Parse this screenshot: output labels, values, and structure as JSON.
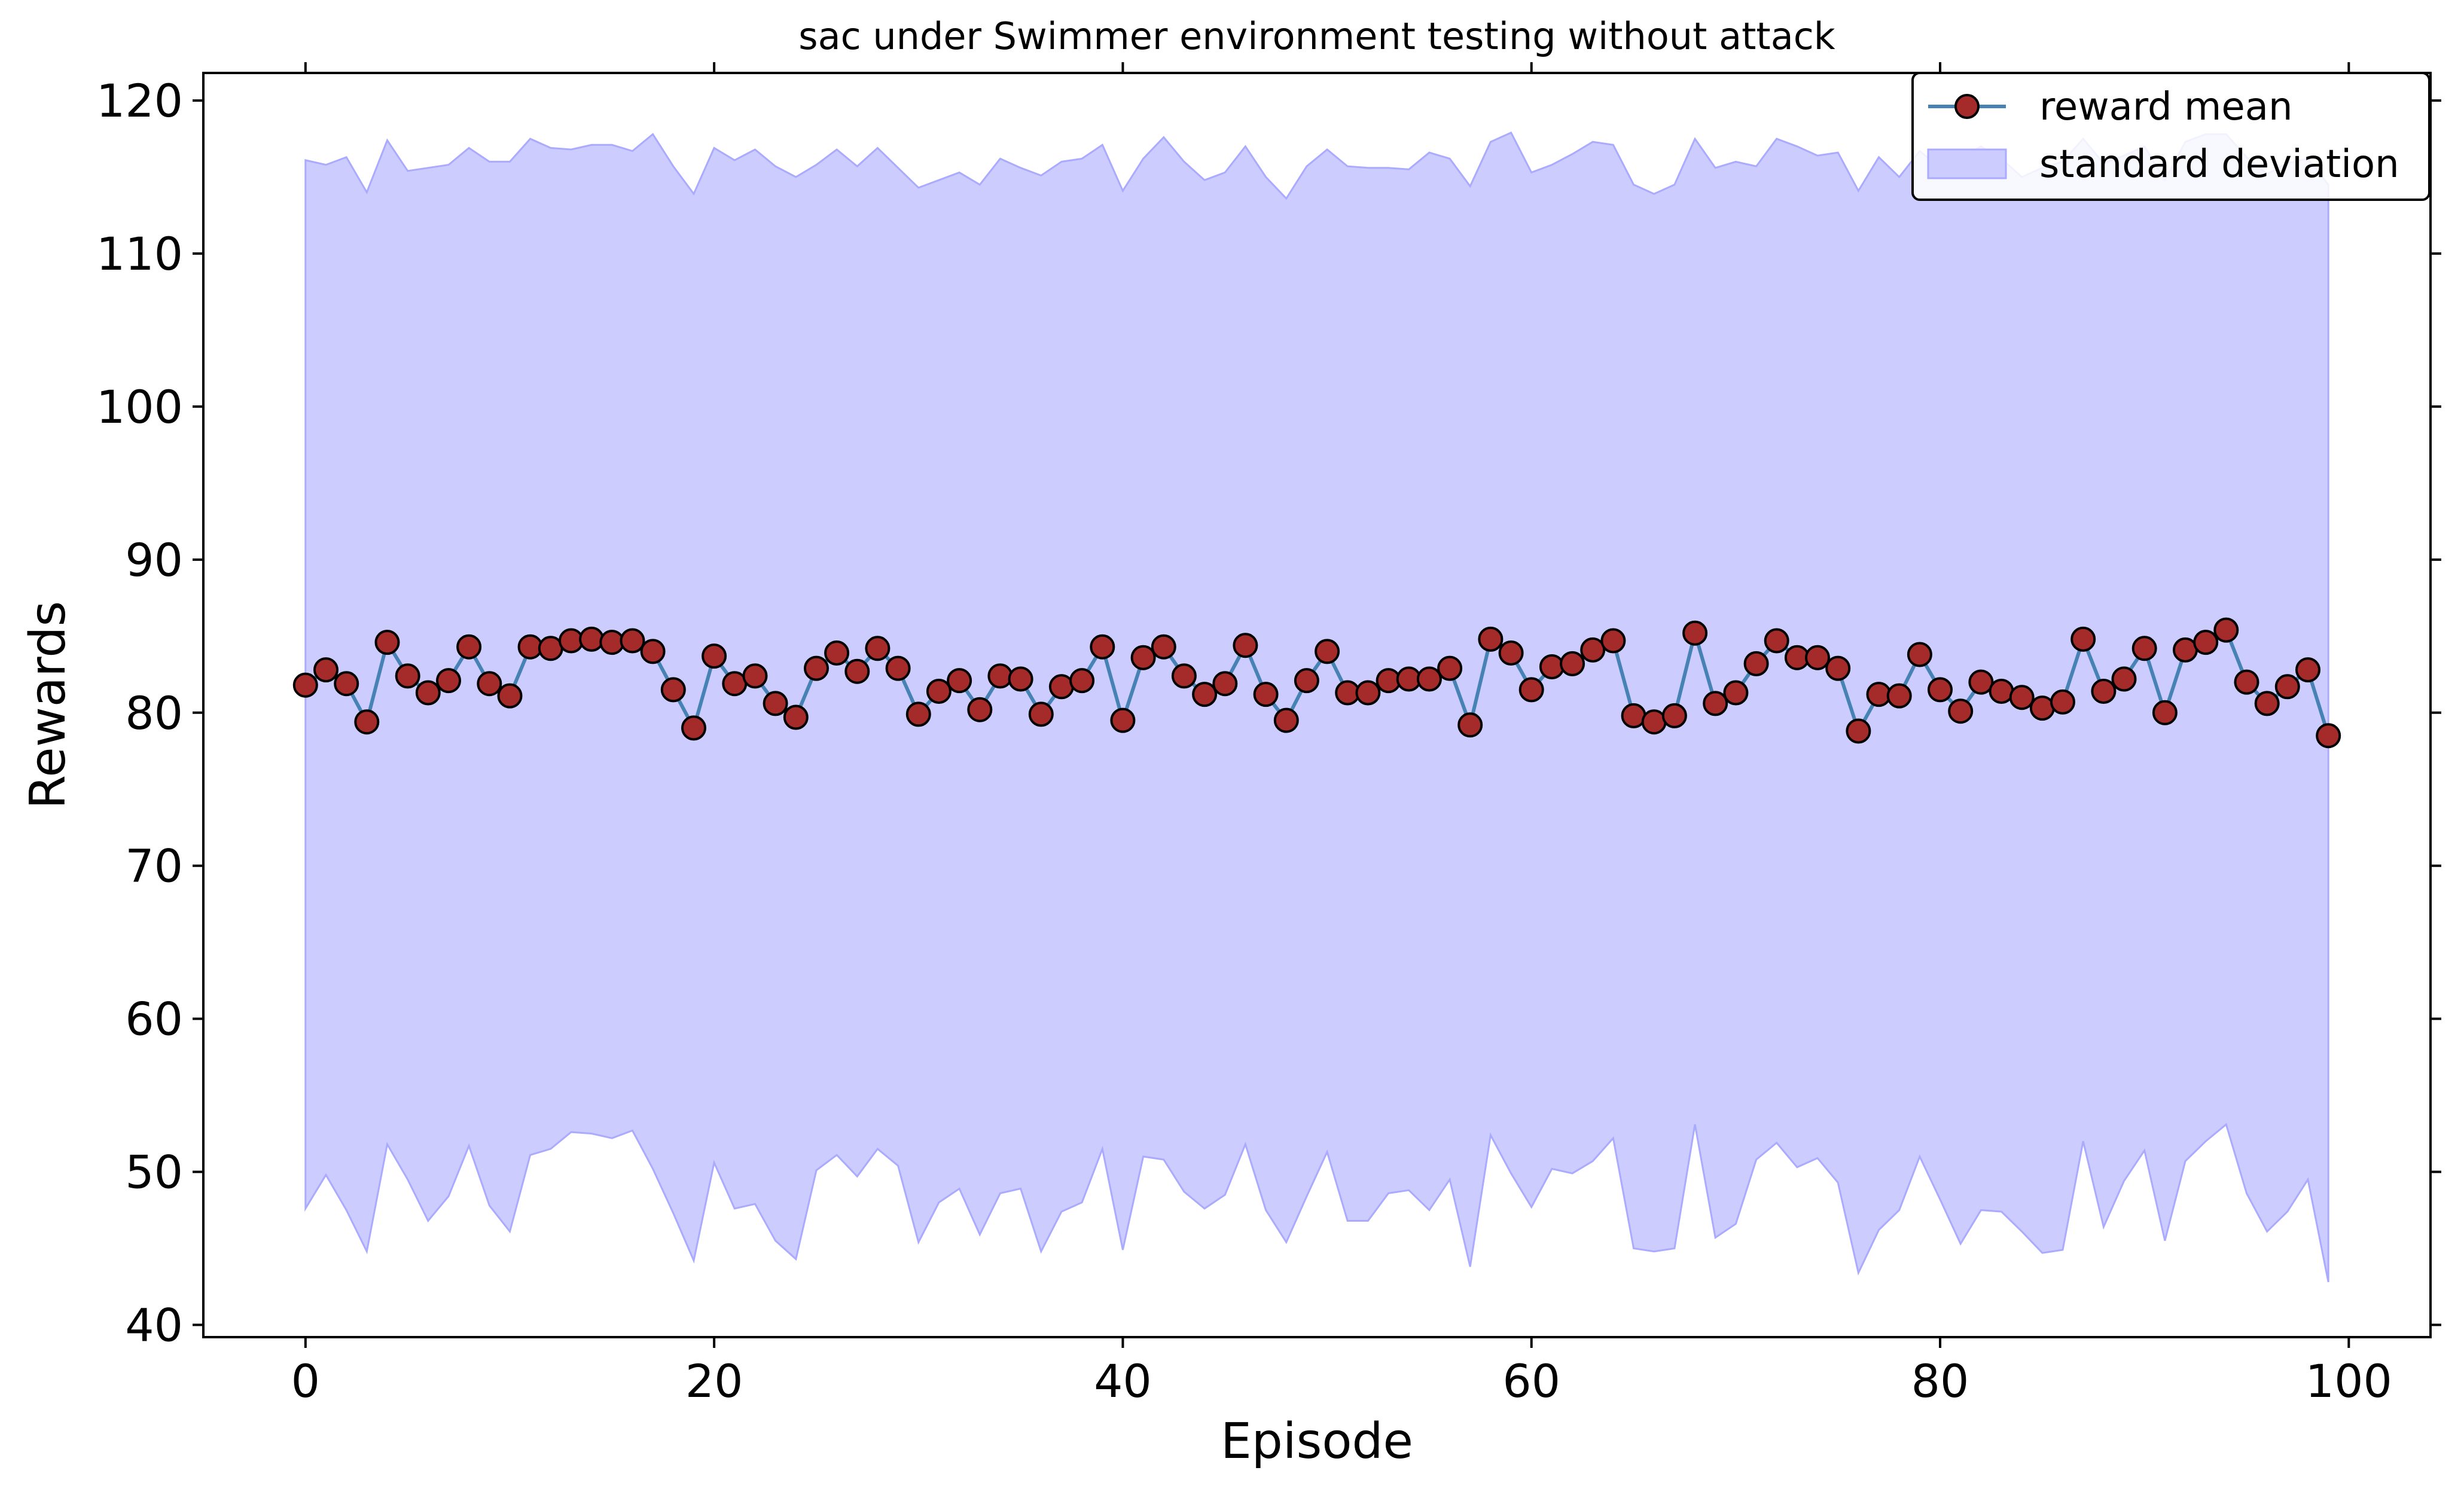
{
  "chart_data": {
    "type": "line",
    "title": "sac under Swimmer environment testing without attack",
    "xlabel": "Episode",
    "ylabel": "Rewards",
    "xlim": [
      -5,
      104
    ],
    "ylim": [
      39.2,
      121.8
    ],
    "xticks": [
      0,
      20,
      40,
      60,
      80,
      100
    ],
    "yticks": [
      40,
      50,
      60,
      70,
      80,
      90,
      100,
      110,
      120
    ],
    "grid": false,
    "legend_position": "top-right",
    "colors": {
      "line": "#4682b4",
      "marker_fill": "#a52a2a",
      "marker_edge": "#000000",
      "band_fill": "#ccccff",
      "band_edge": "#aaaaff"
    },
    "x": [
      0,
      1,
      2,
      3,
      4,
      5,
      6,
      7,
      8,
      9,
      10,
      11,
      12,
      13,
      14,
      15,
      16,
      17,
      18,
      19,
      20,
      21,
      22,
      23,
      24,
      25,
      26,
      27,
      28,
      29,
      30,
      31,
      32,
      33,
      34,
      35,
      36,
      37,
      38,
      39,
      40,
      41,
      42,
      43,
      44,
      45,
      46,
      47,
      48,
      49,
      50,
      51,
      52,
      53,
      54,
      55,
      56,
      57,
      58,
      59,
      60,
      61,
      62,
      63,
      64,
      65,
      66,
      67,
      68,
      69,
      70,
      71,
      72,
      73,
      74,
      75,
      76,
      77,
      78,
      79,
      80,
      81,
      82,
      83,
      84,
      85,
      86,
      87,
      88,
      89,
      90,
      91,
      92,
      93,
      94,
      95,
      96,
      97,
      98,
      99
    ],
    "series": [
      {
        "name": "reward mean",
        "marker": "o",
        "values": [
          81.8,
          82.8,
          81.9,
          79.4,
          84.6,
          82.4,
          81.3,
          82.1,
          84.3,
          81.9,
          81.1,
          84.3,
          84.2,
          84.7,
          84.8,
          84.6,
          84.7,
          84.0,
          81.5,
          79.0,
          83.7,
          81.9,
          82.4,
          80.6,
          79.7,
          82.9,
          83.9,
          82.7,
          84.2,
          82.9,
          79.9,
          81.4,
          82.1,
          80.2,
          82.4,
          82.2,
          79.9,
          81.7,
          82.1,
          84.3,
          79.5,
          83.6,
          84.3,
          82.4,
          81.2,
          81.9,
          84.4,
          81.2,
          79.5,
          82.1,
          84.0,
          81.3,
          81.3,
          82.1,
          82.2,
          82.2,
          82.9,
          79.2,
          84.8,
          83.9,
          81.5,
          83.0,
          83.2,
          84.1,
          84.7,
          79.8,
          79.4,
          79.8,
          85.2,
          80.6,
          81.3,
          83.2,
          84.7,
          83.6,
          83.6,
          82.9,
          78.8,
          81.2,
          81.1,
          83.8,
          81.5,
          80.1,
          82.0,
          81.4,
          81.0,
          80.3,
          80.7,
          84.8,
          81.4,
          82.2,
          84.2,
          80.0,
          84.1,
          84.6,
          85.4,
          82.0,
          80.6,
          81.7,
          82.8,
          78.5
        ]
      },
      {
        "name": "standard deviation",
        "type": "band",
        "upper": [
          116.1,
          115.8,
          116.3,
          114.0,
          117.4,
          115.4,
          115.6,
          115.8,
          116.9,
          116.0,
          116.0,
          117.5,
          116.9,
          116.8,
          117.1,
          117.1,
          116.7,
          117.8,
          115.7,
          113.9,
          116.9,
          116.1,
          116.8,
          115.7,
          115.0,
          115.8,
          116.8,
          115.7,
          116.9,
          115.6,
          114.3,
          114.8,
          115.3,
          114.5,
          116.2,
          115.6,
          115.1,
          116.0,
          116.2,
          117.1,
          114.1,
          116.2,
          117.6,
          116.0,
          114.8,
          115.3,
          117.0,
          115.0,
          113.6,
          115.7,
          116.8,
          115.7,
          115.6,
          115.6,
          115.5,
          116.6,
          116.2,
          114.4,
          117.3,
          117.9,
          115.3,
          115.8,
          116.5,
          117.3,
          117.1,
          114.5,
          113.9,
          114.5,
          117.5,
          115.6,
          116.0,
          115.7,
          117.5,
          117.0,
          116.4,
          116.6,
          114.1,
          116.3,
          115.0,
          116.7,
          115.6,
          116.3,
          117.0,
          116.2,
          115.0,
          115.6,
          116.0,
          117.5,
          115.9,
          116.4,
          117.0,
          114.8,
          117.3,
          117.8,
          117.8,
          116.3,
          115.2,
          115.9,
          116.2,
          114.5
        ],
        "lower": [
          47.6,
          49.8,
          47.5,
          44.8,
          51.8,
          49.5,
          46.8,
          48.4,
          51.7,
          47.8,
          46.1,
          51.1,
          51.5,
          52.6,
          52.5,
          52.2,
          52.7,
          50.2,
          47.3,
          44.2,
          50.6,
          47.6,
          47.9,
          45.5,
          44.3,
          50.1,
          51.1,
          49.7,
          51.5,
          50.4,
          45.4,
          48.0,
          48.9,
          45.9,
          48.6,
          48.9,
          44.8,
          47.4,
          48.0,
          51.5,
          44.9,
          51.0,
          50.8,
          48.7,
          47.6,
          48.5,
          51.8,
          47.5,
          45.4,
          48.4,
          51.3,
          46.8,
          46.8,
          48.6,
          48.8,
          47.5,
          49.5,
          43.8,
          52.4,
          49.9,
          47.7,
          50.2,
          49.9,
          50.7,
          52.2,
          45.0,
          44.8,
          45.0,
          53.1,
          45.7,
          46.6,
          50.8,
          51.9,
          50.3,
          50.9,
          49.3,
          43.4,
          46.2,
          47.5,
          51.0,
          48.2,
          45.3,
          47.5,
          47.4,
          46.1,
          44.7,
          44.9,
          52.0,
          46.4,
          49.4,
          51.4,
          45.5,
          50.7,
          52.0,
          53.1,
          48.6,
          46.1,
          47.4,
          49.5,
          42.8
        ]
      }
    ]
  }
}
